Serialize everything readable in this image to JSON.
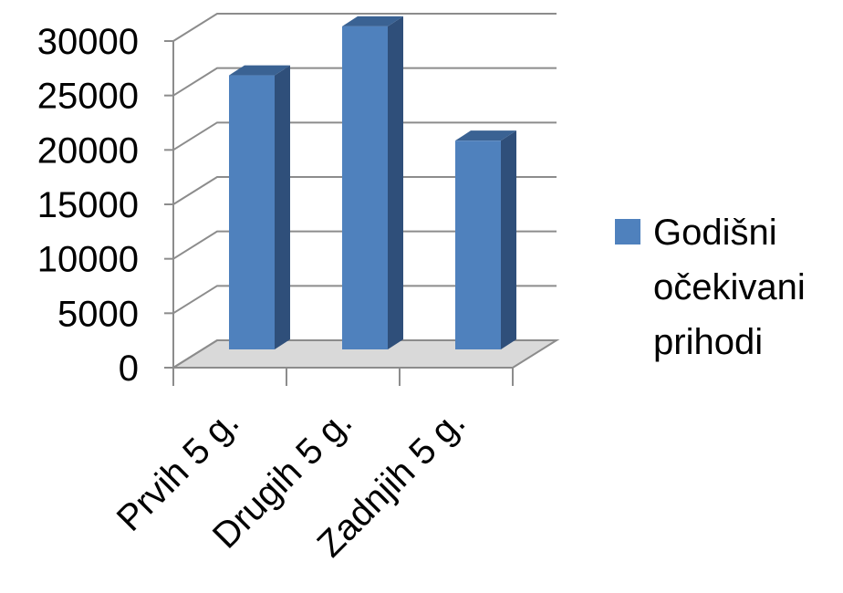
{
  "chart_data": {
    "type": "bar",
    "style": "3d-column",
    "categories": [
      "Prvih 5 g.",
      "Drugih 5 g.",
      "Zadnjih 5 g."
    ],
    "series": [
      {
        "name": "Godišni očekivani prihodi",
        "values": [
          23500,
          28000,
          17500
        ]
      }
    ],
    "legend": {
      "lines": [
        "Godišni",
        "očekivani",
        "prihodi"
      ],
      "placement": "right"
    },
    "ylim": [
      0,
      30000
    ],
    "yticks": [
      0,
      5000,
      10000,
      15000,
      20000,
      25000,
      30000
    ],
    "grid": true,
    "colors": {
      "bar_front": "#4f81bd",
      "bar_side": "#2f4f7a",
      "bar_top": "#3a6293",
      "grid": "#8c8c8c",
      "floor": "#d9d9d9"
    }
  }
}
